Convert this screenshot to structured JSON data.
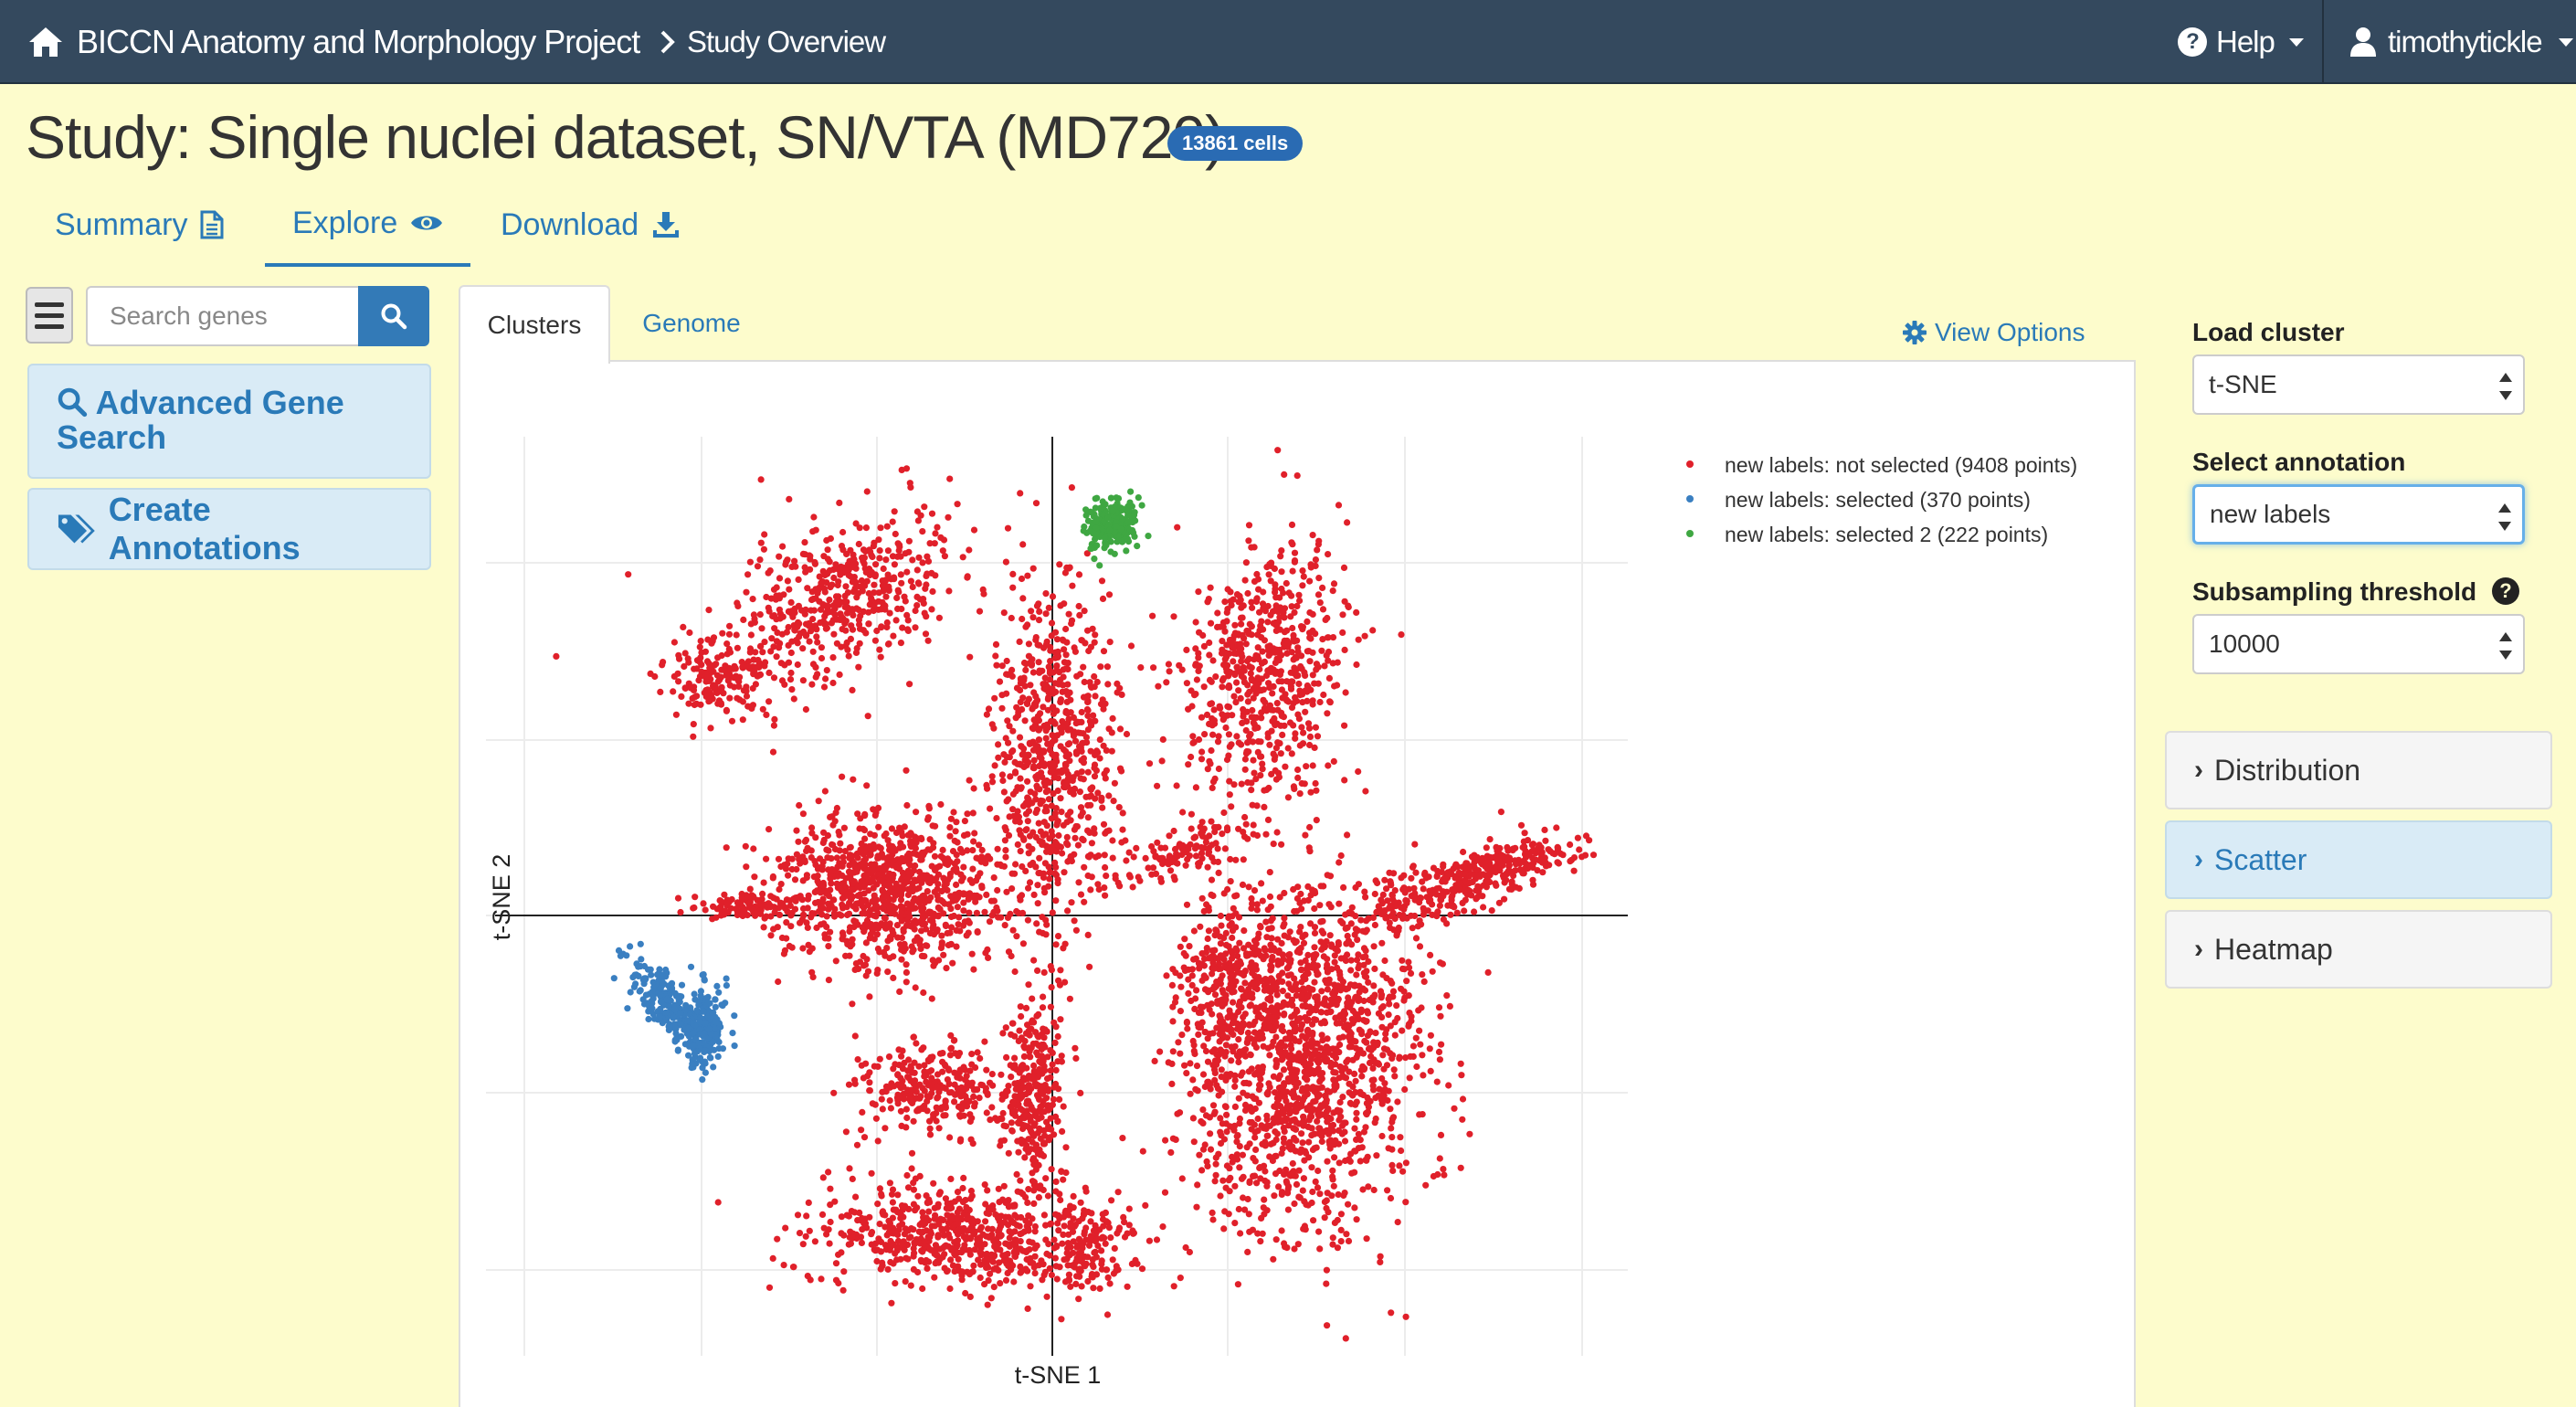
{
  "navbar": {
    "brand": "BICCN Anatomy and Morphology Project",
    "breadcrumb": "Study Overview",
    "help": "Help",
    "user": "timothytickle"
  },
  "study": {
    "title": "Study: Single nuclei dataset, SN/VTA (MD720)",
    "cells_badge": "13861 cells"
  },
  "main_tabs": [
    {
      "label": "Summary",
      "icon": "file-icon",
      "active": false
    },
    {
      "label": "Explore",
      "icon": "eye-icon",
      "active": true
    },
    {
      "label": "Download",
      "icon": "download-icon",
      "active": false
    }
  ],
  "sidebar": {
    "search_placeholder": "Search genes",
    "advanced_search": "Advanced Gene Search",
    "create_annotations": "Create Annotations"
  },
  "plot_tabs": [
    {
      "label": "Clusters",
      "active": true
    },
    {
      "label": "Genome",
      "active": false
    }
  ],
  "view_options": "View Options",
  "controls": {
    "load_cluster_label": "Load cluster",
    "load_cluster_value": "t-SNE",
    "annotation_label": "Select annotation",
    "annotation_value": "new labels",
    "subsampling_label": "Subsampling threshold",
    "subsampling_value": "10000"
  },
  "accordions": [
    {
      "label": "Distribution",
      "open": false
    },
    {
      "label": "Scatter",
      "open": true
    },
    {
      "label": "Heatmap",
      "open": false
    }
  ],
  "chart_data": {
    "type": "scatter",
    "xlabel": "t-SNE 1",
    "ylabel": "t-SNE 2",
    "grid": true,
    "legend_position": "top-right",
    "series": [
      {
        "name": "new labels: not selected (9408 points)",
        "color": "#e0202a"
      },
      {
        "name": "new labels: selected (370 points)",
        "color": "#3a7fc1"
      },
      {
        "name": "new labels: selected 2 (222 points)",
        "color": "#3fa742"
      }
    ]
  },
  "colors": {
    "navbar": "#34495e",
    "page_background": "#fdfccc",
    "link": "#2a7ab8",
    "badge": "#2a6bb3"
  }
}
